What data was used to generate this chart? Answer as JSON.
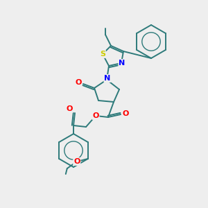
{
  "bg_color": "#eeeeee",
  "bond_color": "#2d7a7a",
  "atom_colors": {
    "O": "#ff0000",
    "N": "#0000ff",
    "S": "#cccc00",
    "C": "#2d7a7a"
  },
  "figsize": [
    3.0,
    3.0
  ],
  "dpi": 100
}
